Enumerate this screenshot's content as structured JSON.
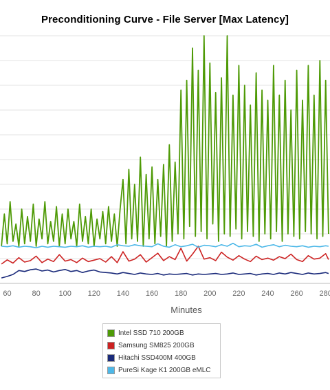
{
  "chart_data": {
    "type": "line",
    "title": "Preconditioning Curve - File Server [Max Latency]",
    "xlabel": "Minutes",
    "ylabel": "",
    "xlim": [
      55,
      283
    ],
    "ylim": [
      0,
      1000
    ],
    "grid": true,
    "legend_position": "bottom",
    "x_ticks": [
      60,
      80,
      100,
      120,
      140,
      160,
      180,
      200,
      220,
      240,
      260,
      280
    ],
    "series": [
      {
        "name": "Intel SSD 710 200GB",
        "color": "#4e9a06",
        "x": [
          56,
          58,
          60,
          62,
          64,
          66,
          68,
          70,
          72,
          74,
          76,
          78,
          80,
          82,
          84,
          86,
          88,
          90,
          92,
          94,
          96,
          98,
          100,
          102,
          104,
          106,
          108,
          110,
          112,
          114,
          116,
          118,
          120,
          122,
          124,
          126,
          128,
          130,
          132,
          134,
          136,
          138,
          140,
          142,
          144,
          146,
          148,
          150,
          152,
          154,
          156,
          158,
          160,
          162,
          164,
          166,
          168,
          170,
          172,
          174,
          176,
          178,
          180,
          182,
          184,
          186,
          188,
          190,
          192,
          194,
          196,
          198,
          200,
          202,
          204,
          206,
          208,
          210,
          212,
          214,
          216,
          218,
          220,
          222,
          224,
          226,
          228,
          230,
          232,
          234,
          236,
          238,
          240,
          242,
          244,
          246,
          248,
          250,
          252,
          254,
          256,
          258,
          260,
          262,
          264,
          266,
          268,
          270,
          272,
          274,
          276,
          278,
          280,
          282
        ],
        "y": [
          150,
          280,
          160,
          330,
          170,
          240,
          150,
          300,
          160,
          270,
          170,
          320,
          150,
          260,
          180,
          330,
          160,
          250,
          170,
          310,
          150,
          280,
          160,
          300,
          180,
          250,
          150,
          320,
          170,
          270,
          160,
          300,
          150,
          260,
          180,
          290,
          160,
          310,
          170,
          280,
          150,
          300,
          420,
          160,
          460,
          180,
          400,
          170,
          510,
          150,
          440,
          180,
          470,
          160,
          420,
          190,
          480,
          150,
          560,
          170,
          490,
          200,
          780,
          180,
          820,
          230,
          950,
          190,
          860,
          210,
          1000,
          180,
          890,
          240,
          770,
          170,
          830,
          200,
          1000,
          190,
          760,
          220,
          880,
          180,
          800,
          210,
          720,
          190,
          850,
          170,
          780,
          200,
          740,
          180,
          880,
          210,
          760,
          170,
          820,
          200,
          700,
          190,
          860,
          180,
          740,
          210,
          880,
          200,
          760,
          180,
          900,
          190,
          820,
          200
        ]
      },
      {
        "name": "Samsung SM825 200GB",
        "color": "#cc2222",
        "x": [
          56,
          60,
          64,
          68,
          72,
          76,
          80,
          84,
          88,
          92,
          96,
          100,
          104,
          108,
          112,
          116,
          120,
          124,
          128,
          132,
          136,
          140,
          144,
          148,
          152,
          156,
          160,
          164,
          168,
          172,
          176,
          180,
          184,
          188,
          192,
          196,
          200,
          204,
          208,
          212,
          216,
          220,
          224,
          228,
          232,
          236,
          240,
          244,
          248,
          252,
          256,
          260,
          264,
          268,
          272,
          276,
          280,
          282
        ],
        "y": [
          78,
          95,
          82,
          104,
          86,
          92,
          110,
          84,
          98,
          88,
          116,
          90,
          96,
          84,
          102,
          88,
          94,
          100,
          86,
          108,
          84,
          128,
          90,
          98,
          116,
          86,
          104,
          122,
          92,
          108,
          96,
          142,
          90,
          118,
          150,
          98,
          104,
          92,
          126,
          106,
          94,
          112,
          98,
          88,
          110,
          96,
          102,
          94,
          108,
          100,
          118,
          96,
          88,
          112,
          98,
          102,
          120,
          96
        ]
      },
      {
        "name": "Hitachi SSD400M 400GB",
        "color": "#1a2a7a",
        "x": [
          56,
          60,
          64,
          68,
          72,
          76,
          80,
          84,
          88,
          92,
          96,
          100,
          104,
          108,
          112,
          116,
          120,
          124,
          128,
          132,
          136,
          140,
          144,
          148,
          152,
          156,
          160,
          164,
          168,
          172,
          176,
          180,
          184,
          188,
          192,
          196,
          200,
          204,
          208,
          212,
          216,
          220,
          224,
          228,
          232,
          236,
          240,
          244,
          248,
          252,
          256,
          260,
          264,
          268,
          272,
          276,
          280,
          282
        ],
        "y": [
          22,
          28,
          36,
          52,
          48,
          55,
          58,
          50,
          54,
          46,
          52,
          56,
          48,
          52,
          44,
          50,
          54,
          46,
          44,
          42,
          38,
          44,
          40,
          36,
          42,
          38,
          36,
          40,
          34,
          38,
          36,
          38,
          40,
          34,
          38,
          36,
          38,
          40,
          36,
          38,
          42,
          36,
          38,
          40,
          34,
          38,
          40,
          36,
          42,
          38,
          44,
          40,
          36,
          42,
          38,
          40,
          44,
          40
        ]
      },
      {
        "name": "PureSi Kage K1 200GB eMLC",
        "color": "#4db8e8",
        "x": [
          56,
          60,
          64,
          68,
          72,
          76,
          80,
          84,
          88,
          92,
          96,
          100,
          104,
          108,
          112,
          116,
          120,
          124,
          128,
          132,
          136,
          140,
          144,
          148,
          152,
          156,
          160,
          164,
          168,
          172,
          176,
          180,
          184,
          188,
          192,
          196,
          200,
          204,
          208,
          212,
          216,
          220,
          224,
          228,
          232,
          236,
          240,
          244,
          248,
          252,
          256,
          260,
          264,
          268,
          272,
          276,
          280,
          282
        ],
        "y": [
          150,
          148,
          152,
          146,
          150,
          148,
          144,
          150,
          146,
          150,
          148,
          146,
          150,
          148,
          152,
          146,
          150,
          148,
          150,
          146,
          156,
          152,
          150,
          156,
          152,
          150,
          148,
          160,
          150,
          146,
          156,
          148,
          152,
          158,
          146,
          154,
          152,
          148,
          156,
          150,
          162,
          148,
          152,
          150,
          158,
          146,
          152,
          156,
          148,
          154,
          150,
          148,
          152,
          146,
          150,
          148,
          152,
          150
        ]
      }
    ]
  }
}
